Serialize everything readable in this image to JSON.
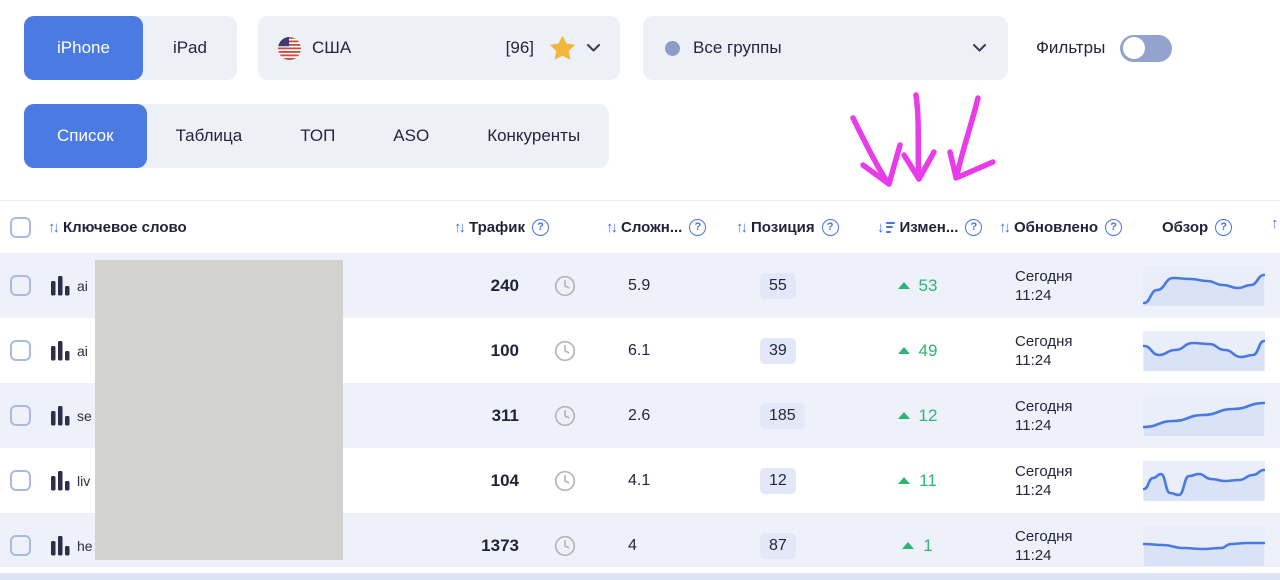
{
  "topbar": {
    "device_tabs": [
      {
        "label": "iPhone",
        "active": true
      },
      {
        "label": "iPad",
        "active": false
      }
    ],
    "country": {
      "name": "США",
      "counter": "[96]"
    },
    "groups": {
      "label": "Все группы"
    },
    "filters_label": "Фильтры"
  },
  "tabs": [
    {
      "label": "Список",
      "active": true
    },
    {
      "label": "Таблица",
      "active": false
    },
    {
      "label": "ТОП",
      "active": false
    },
    {
      "label": "ASO",
      "active": false
    },
    {
      "label": "Конкуренты",
      "active": false
    }
  ],
  "table": {
    "headers": [
      {
        "key": "keyword",
        "label": "Ключевое слово",
        "sort": "both",
        "help": false
      },
      {
        "key": "traffic",
        "label": "Трафик",
        "sort": "both",
        "help": true
      },
      {
        "key": "clock",
        "label": "",
        "sort": "none",
        "help": false
      },
      {
        "key": "difficulty",
        "label": "Сложн...",
        "sort": "both",
        "help": true
      },
      {
        "key": "position",
        "label": "Позиция",
        "sort": "both",
        "help": true
      },
      {
        "key": "change",
        "label": "Измен...",
        "sort": "active",
        "help": true
      },
      {
        "key": "updated",
        "label": "Обновлено",
        "sort": "both",
        "help": true
      },
      {
        "key": "overview",
        "label": "Обзор",
        "sort": "none",
        "help": true
      }
    ],
    "rows": [
      {
        "keyword_prefix": "ai",
        "traffic": "240",
        "difficulty": "5.9",
        "position": "55",
        "change": "53",
        "updated_day": "Сегодня",
        "updated_time": "11:24",
        "spark": [
          [
            1,
            37
          ],
          [
            14,
            24
          ],
          [
            30,
            12
          ],
          [
            48,
            13
          ],
          [
            64,
            15
          ],
          [
            80,
            19
          ],
          [
            95,
            22
          ],
          [
            108,
            19
          ],
          [
            121,
            9
          ]
        ]
      },
      {
        "keyword_prefix": "ai",
        "traffic": "100",
        "difficulty": "6.1",
        "position": "39",
        "change": "49",
        "updated_day": "Сегодня",
        "updated_time": "11:24",
        "spark": [
          [
            1,
            15
          ],
          [
            16,
            24
          ],
          [
            32,
            19
          ],
          [
            50,
            12
          ],
          [
            66,
            13
          ],
          [
            82,
            19
          ],
          [
            98,
            26
          ],
          [
            110,
            24
          ],
          [
            121,
            10
          ]
        ]
      },
      {
        "keyword_prefix": "se",
        "traffic": "311",
        "difficulty": "2.6",
        "position": "185",
        "change": "12",
        "updated_day": "Сегодня",
        "updated_time": "11:24",
        "spark": [
          [
            1,
            31
          ],
          [
            30,
            25
          ],
          [
            60,
            19
          ],
          [
            90,
            13
          ],
          [
            121,
            7
          ]
        ]
      },
      {
        "keyword_prefix": "liv",
        "traffic": "104",
        "difficulty": "4.1",
        "position": "12",
        "change": "11",
        "updated_day": "Сегодня",
        "updated_time": "11:24",
        "spark": [
          [
            1,
            28
          ],
          [
            10,
            17
          ],
          [
            18,
            13
          ],
          [
            27,
            32
          ],
          [
            36,
            34
          ],
          [
            46,
            15
          ],
          [
            56,
            13
          ],
          [
            68,
            18
          ],
          [
            82,
            20
          ],
          [
            96,
            19
          ],
          [
            110,
            14
          ],
          [
            121,
            9
          ]
        ]
      },
      {
        "keyword_prefix": "he",
        "traffic": "1373",
        "difficulty": "4",
        "position": "87",
        "change": "1",
        "updated_day": "Сегодня",
        "updated_time": "11:24",
        "spark": [
          [
            1,
            18
          ],
          [
            20,
            19
          ],
          [
            40,
            22
          ],
          [
            60,
            23
          ],
          [
            78,
            22
          ],
          [
            88,
            18
          ],
          [
            104,
            17
          ],
          [
            121,
            17
          ]
        ]
      }
    ]
  },
  "colors": {
    "accent_blue": "#4a7ae2",
    "positive_green": "#2bb673",
    "annotation_magenta": "#e93ce9",
    "star_gold": "#f2b63c"
  }
}
